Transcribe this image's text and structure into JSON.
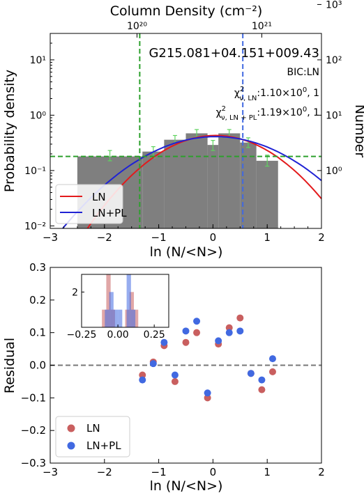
{
  "chart_data": [
    {
      "type": "bar",
      "title": "G215.081+04.151+009.43",
      "top_axis_label": "Column Density (cm⁻²)",
      "top_ticks": [
        {
          "value": "10²⁰",
          "at": -1.4
        },
        {
          "value": "10²¹",
          "at": 0.9
        }
      ],
      "xlabel": "ln (N/<N>)",
      "ylabel": "Probability density",
      "ylabel_right": "Number",
      "xlim": [
        -3,
        2
      ],
      "ylim_log": [
        0.009,
        30
      ],
      "x_ticks": [
        "−3",
        "−2",
        "−1",
        "0",
        "1",
        "2"
      ],
      "y_ticks": [
        {
          "v": 0.01,
          "label": "10⁻²"
        },
        {
          "v": 0.1,
          "label": "10⁻¹"
        },
        {
          "v": 1,
          "label": "10⁰"
        },
        {
          "v": 10,
          "label": "10¹"
        }
      ],
      "y_ticks_right": [
        {
          "v": 0.1,
          "label": "10⁰"
        },
        {
          "v": 1,
          "label": "10¹"
        },
        {
          "v": 10,
          "label": "10²"
        },
        {
          "v": 100,
          "label": "10³"
        }
      ],
      "bic_text": "BIC:LN",
      "chi_ln": {
        "sym": "χ",
        "sup": "2",
        "sub": "ν, LN",
        "value": ":1.10×10",
        "exp": "0",
        "dof": ", 1"
      },
      "chi_lnpl": {
        "sym": "χ",
        "sup": "2",
        "sub": "ν, LN + PL",
        "value": ":1.19×10",
        "exp": "0",
        "dof": ", 1"
      },
      "bins": [
        {
          "x0": -2.5,
          "x1": -1.3,
          "y": 0.18,
          "err": [
            0.15,
            0.23
          ]
        },
        {
          "x0": -1.3,
          "x1": -0.9,
          "y": 0.22,
          "err": [
            0.17,
            0.27
          ]
        },
        {
          "x0": -0.9,
          "x1": -0.5,
          "y": 0.36,
          "err": [
            0.3,
            0.43
          ]
        },
        {
          "x0": -0.5,
          "x1": -0.1,
          "y": 0.47,
          "err": [
            0.4,
            0.55
          ]
        },
        {
          "x0": -0.1,
          "x1": 0.1,
          "y": 0.29,
          "err": [
            0.23,
            0.35
          ]
        },
        {
          "x0": 0.1,
          "x1": 0.5,
          "y": 0.47,
          "err": [
            0.4,
            0.55
          ]
        },
        {
          "x0": 0.5,
          "x1": 0.8,
          "y": 0.32,
          "err": [
            0.26,
            0.39
          ]
        },
        {
          "x0": 0.8,
          "x1": 1.2,
          "y": 0.15,
          "err": [
            0.12,
            0.19
          ]
        }
      ],
      "vlines": [
        {
          "x": -1.35,
          "color": "#2ca02c"
        },
        {
          "x": 0.55,
          "color": "#4169e1"
        }
      ],
      "hline": {
        "y": 0.18,
        "color": "#2ca02c"
      },
      "series": [
        {
          "name": "LN",
          "color": "#e31a1c"
        },
        {
          "name": "LN+PL",
          "color": "#1f22d4"
        }
      ],
      "legend": "lower-left"
    },
    {
      "type": "scatter",
      "xlabel": "ln (N/<N>)",
      "ylabel": "Residual",
      "xlim": [
        -3,
        2
      ],
      "ylim": [
        -0.3,
        0.3
      ],
      "x_ticks": [
        "−3",
        "−2",
        "−1",
        "0",
        "1",
        "2"
      ],
      "y_ticks": [
        "−0.3",
        "−0.2",
        "−0.1",
        "0.0",
        "0.1",
        "0.2",
        "0.3"
      ],
      "zero_line": true,
      "series": [
        {
          "name": "LN",
          "color": "#c95f5f",
          "points": [
            [
              -1.3,
              -0.03
            ],
            [
              -1.1,
              0.01
            ],
            [
              -0.9,
              0.06
            ],
            [
              -0.7,
              -0.05
            ],
            [
              -0.5,
              0.07
            ],
            [
              -0.3,
              0.1
            ],
            [
              -0.1,
              -0.1
            ],
            [
              0.1,
              0.065
            ],
            [
              0.3,
              0.115
            ],
            [
              0.5,
              0.145
            ],
            [
              0.7,
              -0.025
            ],
            [
              0.9,
              -0.075
            ],
            [
              1.1,
              -0.02
            ]
          ]
        },
        {
          "name": "LN+PL",
          "color": "#4169e1",
          "points": [
            [
              -1.3,
              -0.045
            ],
            [
              -1.1,
              0.005
            ],
            [
              -0.9,
              0.07
            ],
            [
              -0.7,
              -0.03
            ],
            [
              -0.5,
              0.105
            ],
            [
              -0.3,
              0.135
            ],
            [
              -0.1,
              -0.085
            ],
            [
              0.1,
              0.075
            ],
            [
              0.3,
              0.1
            ],
            [
              0.5,
              0.105
            ],
            [
              0.7,
              -0.025
            ],
            [
              0.9,
              -0.045
            ],
            [
              1.1,
              0.02
            ]
          ]
        }
      ],
      "legend": "lower-left",
      "inset": {
        "type": "histogram",
        "xlim": [
          -0.25,
          0.35
        ],
        "ylim": [
          0,
          3
        ],
        "x_ticks": [
          "−0.25",
          "0.00",
          "0.25"
        ],
        "y_ticks": [
          "2"
        ],
        "series": [
          {
            "name": "LN",
            "color": "#c95f5f",
            "bins": [
              [
                -0.11,
                -0.08,
                1
              ],
              [
                -0.08,
                -0.05,
                3
              ],
              [
                -0.05,
                -0.02,
                1
              ],
              [
                0.05,
                0.08,
                1
              ],
              [
                0.08,
                0.11,
                2
              ],
              [
                0.11,
                0.14,
                1
              ]
            ]
          },
          {
            "name": "LN+PL",
            "color": "#4169e1",
            "bins": [
              [
                -0.09,
                -0.06,
                1
              ],
              [
                -0.06,
                -0.03,
                2
              ],
              [
                -0.03,
                0.0,
                1
              ],
              [
                0.0,
                0.03,
                1
              ],
              [
                0.06,
                0.09,
                3
              ],
              [
                0.09,
                0.12,
                1
              ]
            ]
          }
        ]
      }
    }
  ]
}
